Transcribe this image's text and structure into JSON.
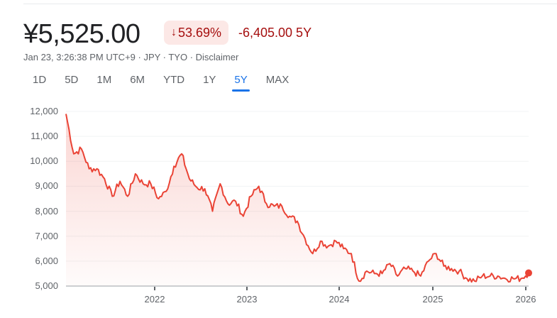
{
  "quote": {
    "price": "¥5,525.00",
    "change_pct": "53.69%",
    "change_direction": "down",
    "arrow_icon": "↓",
    "change_abs": "-6,405.00 5Y",
    "meta": "Jan 23, 3:26:38 PM UTC+9 · JPY · TYO · Disclaimer",
    "colors": {
      "negative": "#a50e0e",
      "badge_bg": "#fce8e6",
      "line": "#ea4335",
      "accent": "#1a73e8"
    }
  },
  "range_tabs": [
    {
      "label": "1D",
      "active": false
    },
    {
      "label": "5D",
      "active": false
    },
    {
      "label": "1M",
      "active": false
    },
    {
      "label": "6M",
      "active": false
    },
    {
      "label": "YTD",
      "active": false
    },
    {
      "label": "1Y",
      "active": false
    },
    {
      "label": "5Y",
      "active": true
    },
    {
      "label": "MAX",
      "active": false
    }
  ],
  "chart_data": {
    "type": "area",
    "title": "",
    "xlabel": "",
    "ylabel": "",
    "ylim": [
      5000,
      12000
    ],
    "y_ticks": [
      "12,000",
      "11,000",
      "10,000",
      "9,000",
      "8,000",
      "7,000",
      "6,000",
      "5,000"
    ],
    "x_ticks": [
      "2022",
      "2023",
      "2024",
      "2025",
      "2026"
    ],
    "grid": true,
    "legend": "none",
    "series": [
      {
        "name": "Price (JPY)",
        "x": [
          "2021-01",
          "2021-02",
          "2021-03",
          "2021-04",
          "2021-05",
          "2021-06",
          "2021-07",
          "2021-08",
          "2021-09",
          "2021-10",
          "2021-11",
          "2021-12",
          "2022-01",
          "2022-02",
          "2022-03",
          "2022-04",
          "2022-05",
          "2022-06",
          "2022-07",
          "2022-08",
          "2022-09",
          "2022-10",
          "2022-11",
          "2022-12",
          "2023-01",
          "2023-02",
          "2023-03",
          "2023-04",
          "2023-05",
          "2023-06",
          "2023-07",
          "2023-08",
          "2023-09",
          "2023-10",
          "2023-11",
          "2023-12",
          "2024-01",
          "2024-02",
          "2024-03",
          "2024-04",
          "2024-05",
          "2024-06",
          "2024-07",
          "2024-08",
          "2024-09",
          "2024-10",
          "2024-11",
          "2024-12",
          "2025-01",
          "2025-02",
          "2025-03",
          "2025-04",
          "2025-05",
          "2025-06",
          "2025-07",
          "2025-08",
          "2025-09",
          "2025-10",
          "2025-11",
          "2025-12",
          "2026-01"
        ],
        "values": [
          11900,
          10300,
          10500,
          9700,
          9700,
          9300,
          8600,
          9200,
          8600,
          9500,
          9100,
          9100,
          8500,
          8800,
          9800,
          10300,
          9300,
          8950,
          8900,
          8000,
          9100,
          8300,
          8400,
          7800,
          8600,
          9000,
          8300,
          8200,
          8200,
          7800,
          7600,
          6900,
          6300,
          6800,
          6600,
          6800,
          6500,
          6300,
          5200,
          5600,
          5500,
          5500,
          5900,
          5400,
          5700,
          5600,
          5400,
          6000,
          6300,
          5800,
          5700,
          5600,
          5300,
          5200,
          5400,
          5400,
          5400,
          5300,
          5300,
          5300,
          5525
        ]
      }
    ],
    "last_point": {
      "label": "2026-01-23",
      "value": 5525
    }
  }
}
